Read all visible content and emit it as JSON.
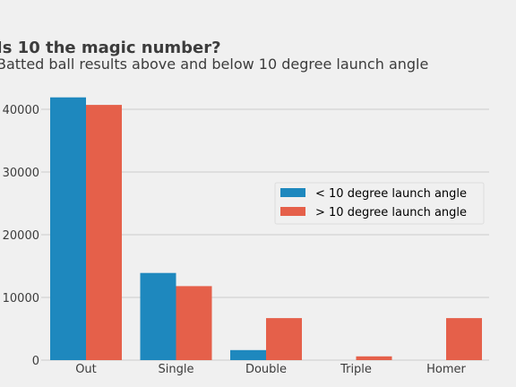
{
  "chart_data": {
    "type": "bar",
    "title": "Is 10 the magic number?",
    "subtitle": "Batted ball results above and below 10 degree launch angle",
    "categories": [
      "Out",
      "Single",
      "Double",
      "Triple",
      "Homer"
    ],
    "series": [
      {
        "name": "< 10 degree launch angle",
        "color": "#1e88be",
        "values": [
          41900,
          13900,
          1600,
          0,
          0
        ]
      },
      {
        "name": "> 10 degree launch angle",
        "color": "#e5604a",
        "values": [
          40700,
          11800,
          6700,
          600,
          6700
        ]
      }
    ],
    "ylim": [
      0,
      43000
    ],
    "yticks": [
      0,
      10000,
      20000,
      30000,
      40000
    ],
    "ytick_labels": [
      "0",
      "10000",
      "20000",
      "30000",
      "40000"
    ],
    "grid": true,
    "legend_position": "center-right",
    "xlabel": "",
    "ylabel": ""
  }
}
